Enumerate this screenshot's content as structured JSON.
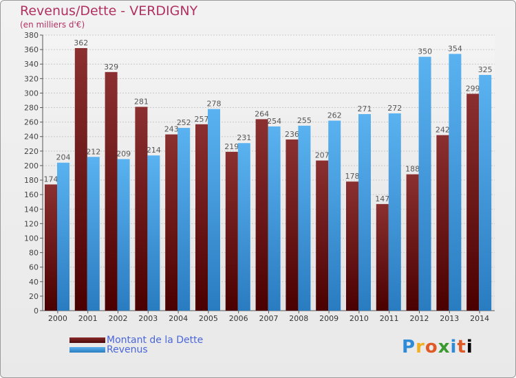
{
  "chart_data": {
    "type": "bar",
    "title": "Revenus/Dette - VERDIGNY",
    "subtitle": "(en milliers d'€)",
    "categories": [
      "2000",
      "2001",
      "2002",
      "2003",
      "2004",
      "2005",
      "2006",
      "2007",
      "2008",
      "2009",
      "2010",
      "2011",
      "2012",
      "2013",
      "2014"
    ],
    "series": [
      {
        "name": "Montant de la Dette",
        "color": "#8b2a2a",
        "values": [
          174,
          362,
          329,
          281,
          243,
          257,
          219,
          264,
          236,
          207,
          178,
          147,
          188,
          242,
          299
        ]
      },
      {
        "name": "Revenus",
        "color": "#4aa3e6",
        "values": [
          204,
          212,
          209,
          214,
          252,
          278,
          231,
          254,
          255,
          262,
          271,
          272,
          350,
          354,
          325
        ]
      }
    ],
    "yticks": [
      0,
      20,
      40,
      60,
      80,
      100,
      120,
      140,
      160,
      180,
      200,
      220,
      240,
      260,
      280,
      300,
      320,
      340,
      360,
      380
    ],
    "ylim": [
      0,
      380
    ],
    "grid": true,
    "legend_position": "bottom-left"
  },
  "logo_text": "Proxiti"
}
